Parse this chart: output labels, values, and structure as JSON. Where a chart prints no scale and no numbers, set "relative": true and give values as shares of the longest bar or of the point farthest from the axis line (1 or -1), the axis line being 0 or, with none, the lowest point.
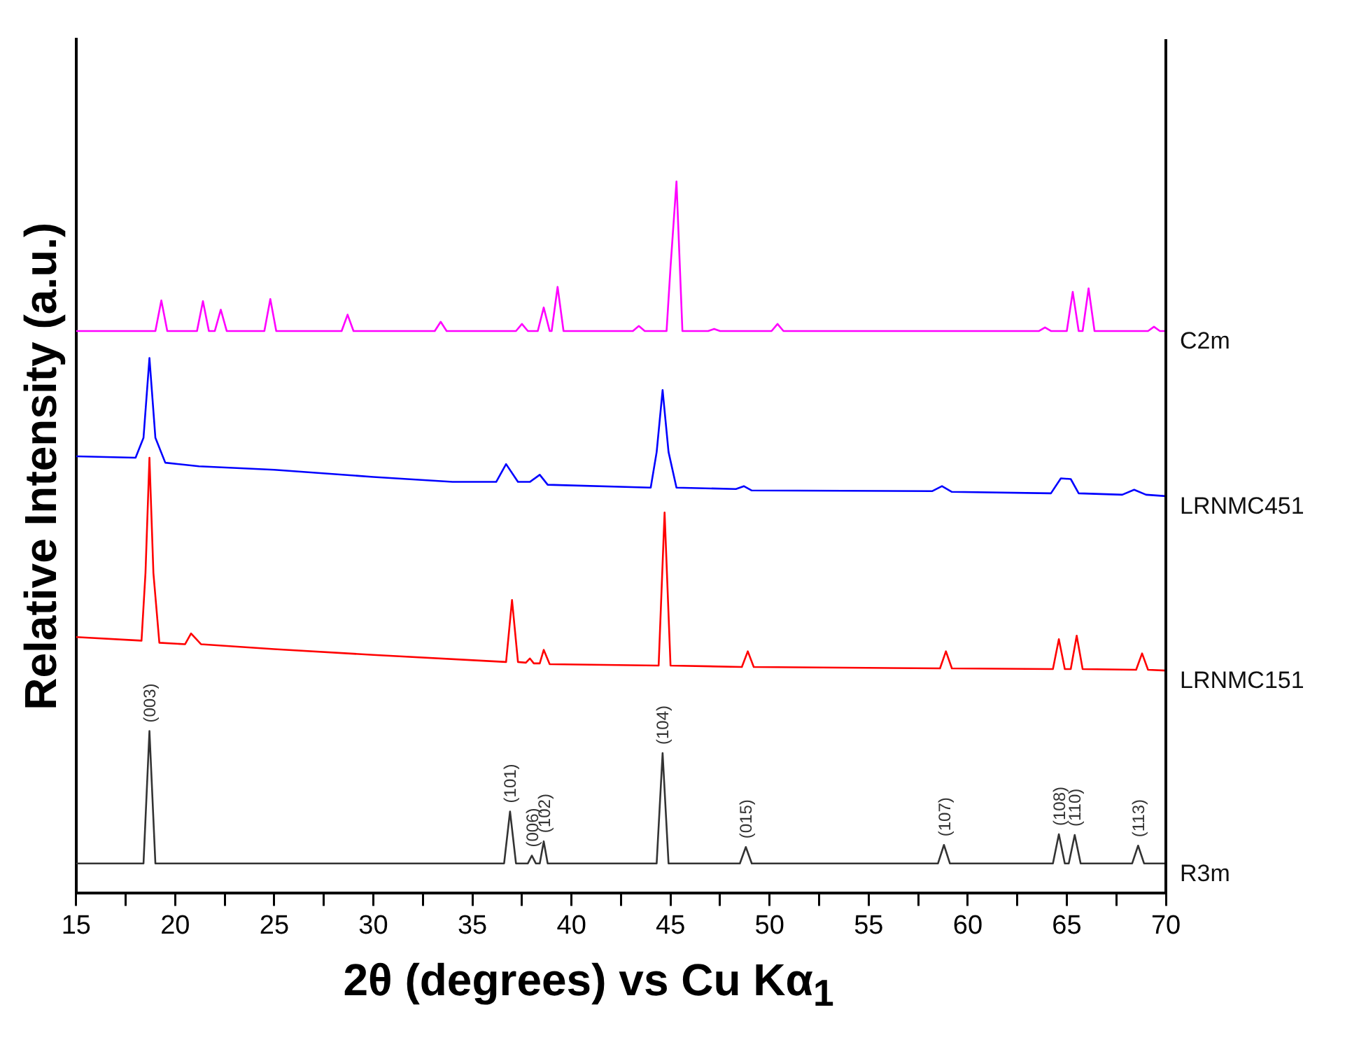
{
  "chart_data": {
    "type": "line",
    "relative": true,
    "xlabel": "2θ (degrees) vs Cu Kα$_{1}$",
    "ylabel": "Relative Intensity (a.u.)",
    "xlim": [
      15,
      70
    ],
    "xticks": [
      15,
      {
        "value": 17.5,
        "label": null
      },
      20,
      {
        "value": 22.5,
        "label": null
      },
      25,
      {
        "value": 27.5,
        "label": null
      },
      30,
      {
        "value": 32.5,
        "label": null
      },
      35,
      {
        "value": 37.5,
        "label": null
      },
      40,
      {
        "value": 42.5,
        "label": null
      },
      45,
      {
        "value": 47.5,
        "label": null
      },
      50,
      {
        "value": 52.5,
        "label": null
      },
      55,
      {
        "value": 57.5,
        "label": null
      },
      60,
      {
        "value": 62.5,
        "label": null
      },
      65,
      {
        "value": 67.5,
        "label": null
      },
      70
    ],
    "grid": false,
    "legend": false,
    "marker": "none",
    "line_style": "solid",
    "tick_labels": "x",
    "series": [
      {
        "name": "C2m",
        "color": "#ff00ff",
        "x": [
          15,
          19.0,
          19.3,
          19.6,
          21.1,
          21.4,
          21.7,
          22.0,
          22.3,
          22.6,
          24.5,
          24.8,
          25.1,
          28.4,
          28.7,
          29.0,
          33.1,
          33.4,
          33.7,
          37.2,
          37.5,
          37.8,
          38.3,
          38.6,
          38.9,
          39.0,
          39.3,
          39.6,
          43.1,
          43.4,
          43.7,
          44.8,
          45.0,
          45.3,
          45.6,
          46.9,
          47.2,
          47.5,
          50.1,
          50.4,
          50.7,
          63.6,
          63.9,
          64.2,
          65.0,
          65.3,
          65.6,
          65.8,
          66.1,
          66.4,
          69.1,
          69.4,
          69.7,
          70
        ],
        "values": [
          0.79,
          0.79,
          0.833,
          0.79,
          0.79,
          0.832,
          0.79,
          0.79,
          0.82,
          0.79,
          0.79,
          0.835,
          0.79,
          0.79,
          0.813,
          0.79,
          0.79,
          0.803,
          0.79,
          0.79,
          0.8,
          0.79,
          0.79,
          0.823,
          0.79,
          0.79,
          0.852,
          0.79,
          0.79,
          0.797,
          0.79,
          0.79,
          0.88,
          1,
          0.79,
          0.79,
          0.793,
          0.79,
          0.79,
          0.8,
          0.79,
          0.79,
          0.795,
          0.79,
          0.79,
          0.845,
          0.79,
          0.79,
          0.85,
          0.79,
          0.79,
          0.796,
          0.79,
          0.79
        ]
      },
      {
        "name": "LRNMC451",
        "color": "#0000ff",
        "x": [
          15,
          18.0,
          18.4,
          18.7,
          19.0,
          19.5,
          21.2,
          25,
          30,
          34,
          36.2,
          36.7,
          37.3,
          37.9,
          38.4,
          38.8,
          44.0,
          44.3,
          44.6,
          44.9,
          45.3,
          48.3,
          48.7,
          49.1,
          58.2,
          58.7,
          59.2,
          64.2,
          64.7,
          65.2,
          65.6,
          67.8,
          68.4,
          69.0,
          70
        ],
        "values": [
          0.614,
          0.612,
          0.64,
          0.752,
          0.64,
          0.605,
          0.6,
          0.595,
          0.585,
          0.578,
          0.578,
          0.603,
          0.578,
          0.578,
          0.588,
          0.574,
          0.57,
          0.62,
          0.707,
          0.62,
          0.57,
          0.568,
          0.572,
          0.566,
          0.565,
          0.572,
          0.564,
          0.562,
          0.583,
          0.582,
          0.562,
          0.56,
          0.567,
          0.56,
          0.558
        ]
      },
      {
        "name": "LRNMC151",
        "color": "#ff0000",
        "x": [
          15,
          18.3,
          18.5,
          18.7,
          18.9,
          19.2,
          20.5,
          20.8,
          21.3,
          25,
          30,
          36.7,
          37.0,
          37.3,
          37.7,
          37.9,
          38.1,
          38.4,
          38.6,
          38.9,
          44.4,
          44.7,
          45.0,
          48.6,
          48.9,
          49.2,
          58.6,
          58.9,
          59.2,
          64.3,
          64.6,
          64.9,
          65.2,
          65.5,
          65.8,
          68.5,
          68.8,
          69.1,
          70
        ],
        "values": [
          0.36,
          0.355,
          0.45,
          0.612,
          0.45,
          0.352,
          0.35,
          0.365,
          0.35,
          0.343,
          0.335,
          0.325,
          0.412,
          0.325,
          0.324,
          0.33,
          0.323,
          0.323,
          0.342,
          0.322,
          0.32,
          0.535,
          0.32,
          0.318,
          0.34,
          0.318,
          0.316,
          0.34,
          0.316,
          0.315,
          0.357,
          0.315,
          0.315,
          0.362,
          0.315,
          0.314,
          0.337,
          0.314,
          0.313
        ]
      },
      {
        "name": "R3m",
        "color": "#333333",
        "x": [
          15,
          18.4,
          18.7,
          19.0,
          36.6,
          36.9,
          37.2,
          37.8,
          38.0,
          38.2,
          38.4,
          38.6,
          38.8,
          44.3,
          44.6,
          44.9,
          48.5,
          48.8,
          49.1,
          58.5,
          58.8,
          59.1,
          64.3,
          64.6,
          64.9,
          65.1,
          65.4,
          65.7,
          68.3,
          68.6,
          68.9,
          70
        ],
        "values": [
          0.042,
          0.042,
          0.228,
          0.042,
          0.042,
          0.115,
          0.042,
          0.042,
          0.053,
          0.042,
          0.042,
          0.073,
          0.042,
          0.042,
          0.197,
          0.042,
          0.042,
          0.065,
          0.042,
          0.042,
          0.068,
          0.042,
          0.042,
          0.083,
          0.042,
          0.042,
          0.082,
          0.042,
          0.042,
          0.067,
          0.042,
          0.042
        ]
      }
    ],
    "annotations": [
      {
        "text": "(003)",
        "x": 18.7,
        "y": 0.228
      },
      {
        "text": "(101)",
        "x": 36.9,
        "y": 0.115
      },
      {
        "text": "(006)",
        "x": 38.0,
        "y": 0.053
      },
      {
        "text": "(102)",
        "x": 38.6,
        "y": 0.073
      },
      {
        "text": "(104)",
        "x": 44.6,
        "y": 0.197
      },
      {
        "text": "(015)",
        "x": 48.8,
        "y": 0.065
      },
      {
        "text": "(107)",
        "x": 58.8,
        "y": 0.068
      },
      {
        "text": "(108)",
        "x": 64.6,
        "y": 0.083
      },
      {
        "text": "(110)",
        "x": 65.4,
        "y": 0.082
      },
      {
        "text": "(113)",
        "x": 68.6,
        "y": 0.067
      }
    ]
  }
}
